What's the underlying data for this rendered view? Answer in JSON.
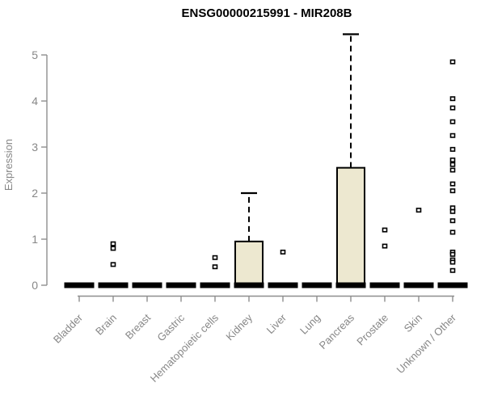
{
  "chart_data": {
    "type": "boxplot",
    "title": "ENSG00000215991 - MIR208B",
    "ylabel": "Expression",
    "xlabel": "",
    "ylim": [
      0,
      5
    ],
    "yticks": [
      0,
      1,
      2,
      3,
      4,
      5
    ],
    "grid": false,
    "legend": false,
    "categories": [
      "Bladder",
      "Brain",
      "Breast",
      "Gastric",
      "Hematopoietic cells",
      "Kidney",
      "Liver",
      "Lung",
      "Pancreas",
      "Prostate",
      "Skin",
      "Unknown / Other"
    ],
    "series": [
      {
        "category": "Bladder",
        "q1": 0,
        "median": 0,
        "q3": 0,
        "whisker_low": 0,
        "whisker_high": 0,
        "outliers": []
      },
      {
        "category": "Brain",
        "q1": 0,
        "median": 0,
        "q3": 0,
        "whisker_low": 0,
        "whisker_high": 0,
        "outliers": [
          0.9,
          0.8,
          0.45
        ]
      },
      {
        "category": "Breast",
        "q1": 0,
        "median": 0,
        "q3": 0,
        "whisker_low": 0,
        "whisker_high": 0,
        "outliers": []
      },
      {
        "category": "Gastric",
        "q1": 0,
        "median": 0,
        "q3": 0,
        "whisker_low": 0,
        "whisker_high": 0,
        "outliers": []
      },
      {
        "category": "Hematopoietic cells",
        "q1": 0,
        "median": 0,
        "q3": 0,
        "whisker_low": 0,
        "whisker_high": 0,
        "outliers": [
          0.6,
          0.4
        ]
      },
      {
        "category": "Kidney",
        "q1": 0,
        "median": 0,
        "q3": 0.95,
        "whisker_low": 0,
        "whisker_high": 2.0,
        "outliers": []
      },
      {
        "category": "Liver",
        "q1": 0,
        "median": 0,
        "q3": 0,
        "whisker_low": 0,
        "whisker_high": 0,
        "outliers": [
          0.72
        ]
      },
      {
        "category": "Lung",
        "q1": 0,
        "median": 0,
        "q3": 0,
        "whisker_low": 0,
        "whisker_high": 0,
        "outliers": []
      },
      {
        "category": "Pancreas",
        "q1": 0,
        "median": 0,
        "q3": 2.55,
        "whisker_low": 0,
        "whisker_high": 5.45,
        "outliers": []
      },
      {
        "category": "Prostate",
        "q1": 0,
        "median": 0,
        "q3": 0,
        "whisker_low": 0,
        "whisker_high": 0,
        "outliers": [
          1.2,
          0.85
        ]
      },
      {
        "category": "Skin",
        "q1": 0,
        "median": 0,
        "q3": 0,
        "whisker_low": 0,
        "whisker_high": 0,
        "outliers": [
          1.63
        ]
      },
      {
        "category": "Unknown / Other",
        "q1": 0,
        "median": 0,
        "q3": 0,
        "whisker_low": 0,
        "whisker_high": 0,
        "outliers": [
          4.85,
          4.05,
          3.85,
          3.55,
          3.25,
          2.95,
          2.72,
          2.62,
          2.5,
          2.2,
          2.05,
          1.68,
          1.6,
          1.4,
          1.15,
          0.72,
          0.67,
          0.55,
          0.5,
          0.32
        ]
      }
    ],
    "colors": {
      "box_fill": "#EDE8D0",
      "box_stroke": "#000000",
      "axis": "#8E8E8E",
      "tick_text": "#878787",
      "title_text": "#000000"
    }
  }
}
